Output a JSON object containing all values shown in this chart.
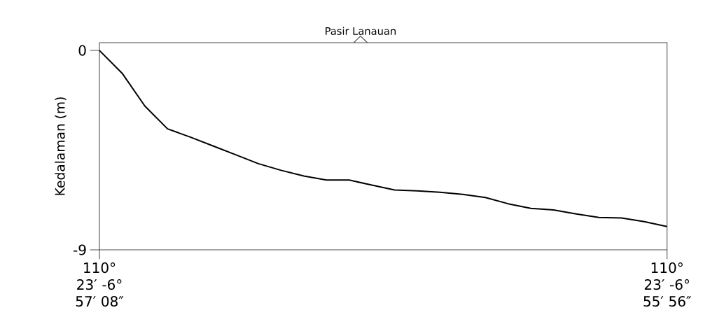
{
  "chart_data": {
    "type": "line",
    "ylabel": "Kedalaman (m)",
    "annotations": [
      "Pasir Lanauan"
    ],
    "categories": [
      "110° 23′ -6° 57′ 08″",
      null,
      null,
      null,
      null,
      null,
      null,
      null,
      null,
      null,
      null,
      null,
      null,
      null,
      null,
      null,
      null,
      null,
      null,
      null,
      null,
      null,
      null,
      null,
      null,
      "110° 23′ -6° 55′ 56″"
    ],
    "series": [
      {
        "color": "#000000",
        "values": [
          0,
          -1.03,
          -2.51,
          -3.54,
          -3.91,
          -4.31,
          -4.71,
          -5.11,
          -5.41,
          -5.67,
          -5.85,
          -5.85,
          -6.08,
          -6.3,
          -6.34,
          -6.4,
          -6.5,
          -6.64,
          -6.92,
          -7.13,
          -7.2,
          -7.38,
          -7.54,
          -7.56,
          -7.73,
          -7.95
        ]
      }
    ],
    "ylim": [
      -9,
      0.35
    ],
    "yticks": [
      -9,
      0
    ],
    "grid": false,
    "marker": "none",
    "line_style": "solid"
  }
}
